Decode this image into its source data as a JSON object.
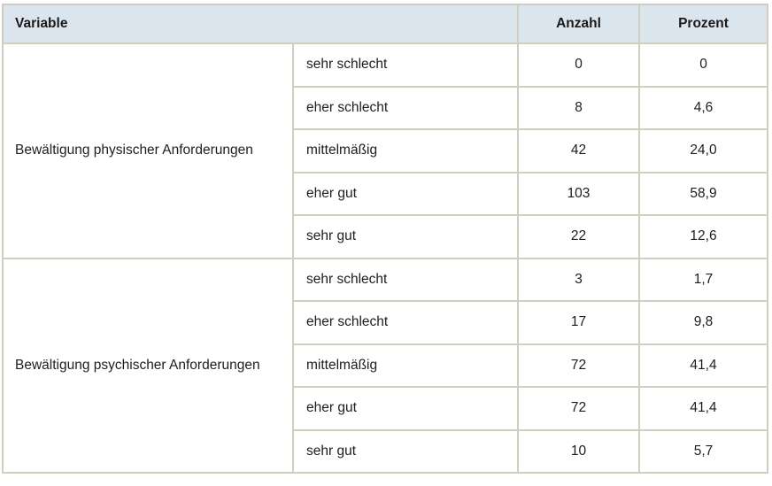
{
  "table": {
    "headers": {
      "variable": "Variable",
      "anzahl": "Anzahl",
      "prozent": "Prozent"
    },
    "groups": [
      {
        "label": "Bewältigung physischer Anforderungen",
        "rows": [
          {
            "category": "sehr schlecht",
            "anzahl": "0",
            "prozent": "0"
          },
          {
            "category": "eher schlecht",
            "anzahl": "8",
            "prozent": "4,6"
          },
          {
            "category": "mittelmäßig",
            "anzahl": "42",
            "prozent": "24,0"
          },
          {
            "category": "eher gut",
            "anzahl": "103",
            "prozent": "58,9"
          },
          {
            "category": "sehr gut",
            "anzahl": "22",
            "prozent": "12,6"
          }
        ]
      },
      {
        "label": "Bewältigung psychischer Anforderungen",
        "rows": [
          {
            "category": "sehr schlecht",
            "anzahl": "3",
            "prozent": "1,7"
          },
          {
            "category": "eher schlecht",
            "anzahl": "17",
            "prozent": "9,8"
          },
          {
            "category": "mittelmäßig",
            "anzahl": "72",
            "prozent": "41,4"
          },
          {
            "category": "eher gut",
            "anzahl": "72",
            "prozent": "41,4"
          },
          {
            "category": "sehr gut",
            "anzahl": "10",
            "prozent": "5,7"
          }
        ]
      }
    ]
  },
  "colors": {
    "header_bg": "#dbe5ee",
    "border": "#d1cec0",
    "text": "#1d1d1b"
  }
}
